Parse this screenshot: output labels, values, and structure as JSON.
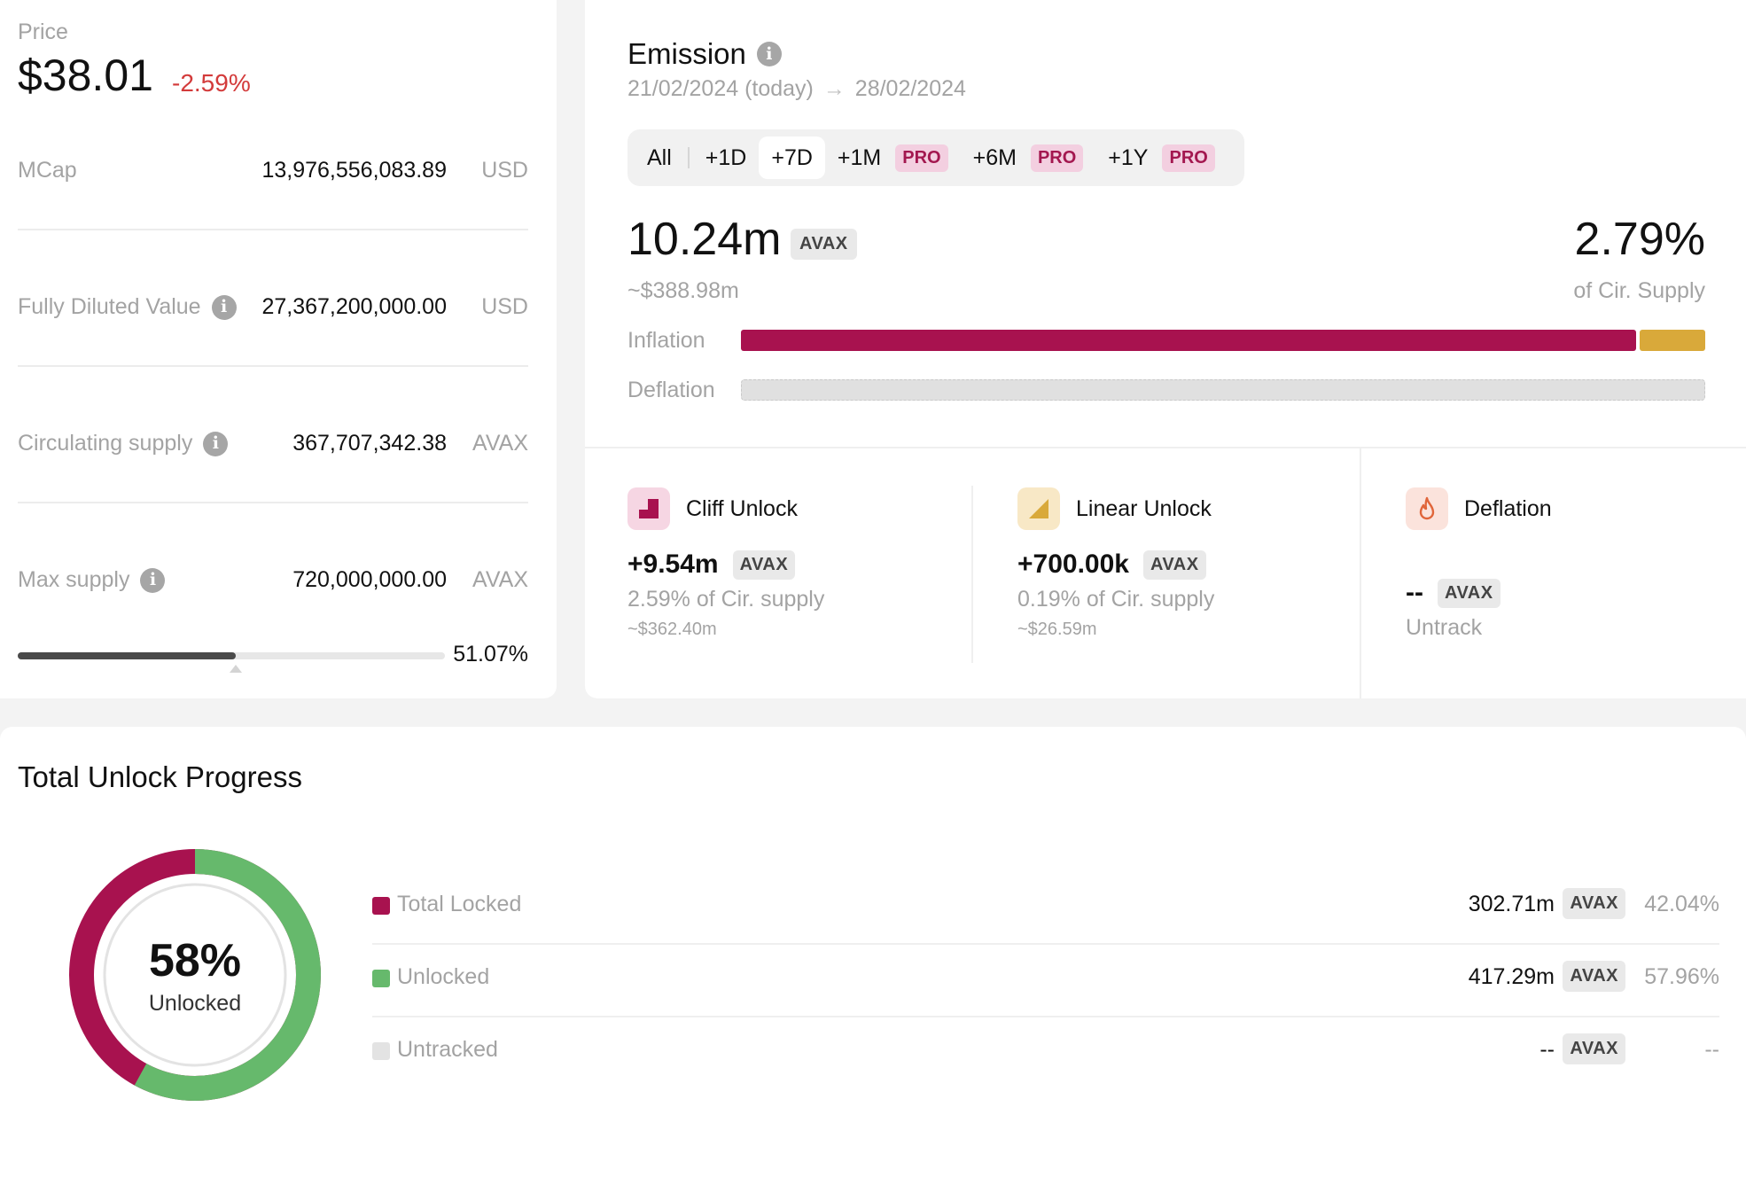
{
  "price": {
    "label": "Price",
    "value": "$38.01",
    "change": "-2.59%",
    "change_color": "#d33b3b"
  },
  "stats": [
    {
      "label": "MCap",
      "value": "13,976,556,083.89",
      "unit": "USD",
      "info": false
    },
    {
      "label": "Fully Diluted Value",
      "value": "27,367,200,000.00",
      "unit": "USD",
      "info": true
    },
    {
      "label": "Circulating supply",
      "value": "367,707,342.38",
      "unit": "AVAX",
      "info": true
    },
    {
      "label": "Max supply",
      "value": "720,000,000.00",
      "unit": "AVAX",
      "info": true
    }
  ],
  "supply_progress": {
    "percent_label": "51.07%",
    "fraction": 0.5107
  },
  "emission": {
    "title": "Emission",
    "date_from": "21/02/2024 (today)",
    "date_arrow": "→",
    "date_to": "28/02/2024",
    "tabs": [
      {
        "label": "All",
        "active": false,
        "pro": false
      },
      {
        "label": "+1D",
        "active": false,
        "pro": false
      },
      {
        "label": "+7D",
        "active": true,
        "pro": false
      },
      {
        "label": "+1M",
        "active": false,
        "pro": true
      },
      {
        "label": "+6M",
        "active": false,
        "pro": true
      },
      {
        "label": "+1Y",
        "active": false,
        "pro": true
      }
    ],
    "pro_label": "PRO",
    "amount": "10.24m",
    "amount_unit": "AVAX",
    "amount_usd": "~$388.98m",
    "percent": "2.79%",
    "percent_label": "of Cir. Supply",
    "inflation_label": "Inflation",
    "deflation_label": "Deflation",
    "inflation_split": {
      "cliff": 9.54,
      "linear": 0.7
    },
    "colors": {
      "cliff": "#a8124f",
      "linear": "#d9a93a",
      "deflation": "#e0e0e0"
    },
    "breakdown": [
      {
        "title": "Cliff Unlock",
        "icon": "cliff-unlock-icon",
        "value": "+9.54m",
        "unit": "AVAX",
        "desc": "2.59% of Cir. supply",
        "usd": "~$362.40m"
      },
      {
        "title": "Linear Unlock",
        "icon": "linear-unlock-icon",
        "value": "+700.00k",
        "unit": "AVAX",
        "desc": "0.19% of Cir. supply",
        "usd": "~$26.59m"
      },
      {
        "title": "Deflation",
        "icon": "flame-icon",
        "value": "--",
        "unit": "AVAX",
        "desc": "Untrack",
        "usd": ""
      }
    ]
  },
  "unlock": {
    "title": "Total Unlock Progress",
    "donut_percent": "58%",
    "donut_label": "Unlocked",
    "unlocked_fraction": 0.5796,
    "colors": {
      "locked": "#a8124f",
      "unlocked": "#66b96c",
      "untracked": "#e3e3e3"
    },
    "rows": [
      {
        "name": "Total Locked",
        "amount": "302.71m",
        "unit": "AVAX",
        "pct": "42.04%"
      },
      {
        "name": "Unlocked",
        "amount": "417.29m",
        "unit": "AVAX",
        "pct": "57.96%"
      },
      {
        "name": "Untracked",
        "amount": "--",
        "unit": "AVAX",
        "pct": "--"
      }
    ]
  }
}
